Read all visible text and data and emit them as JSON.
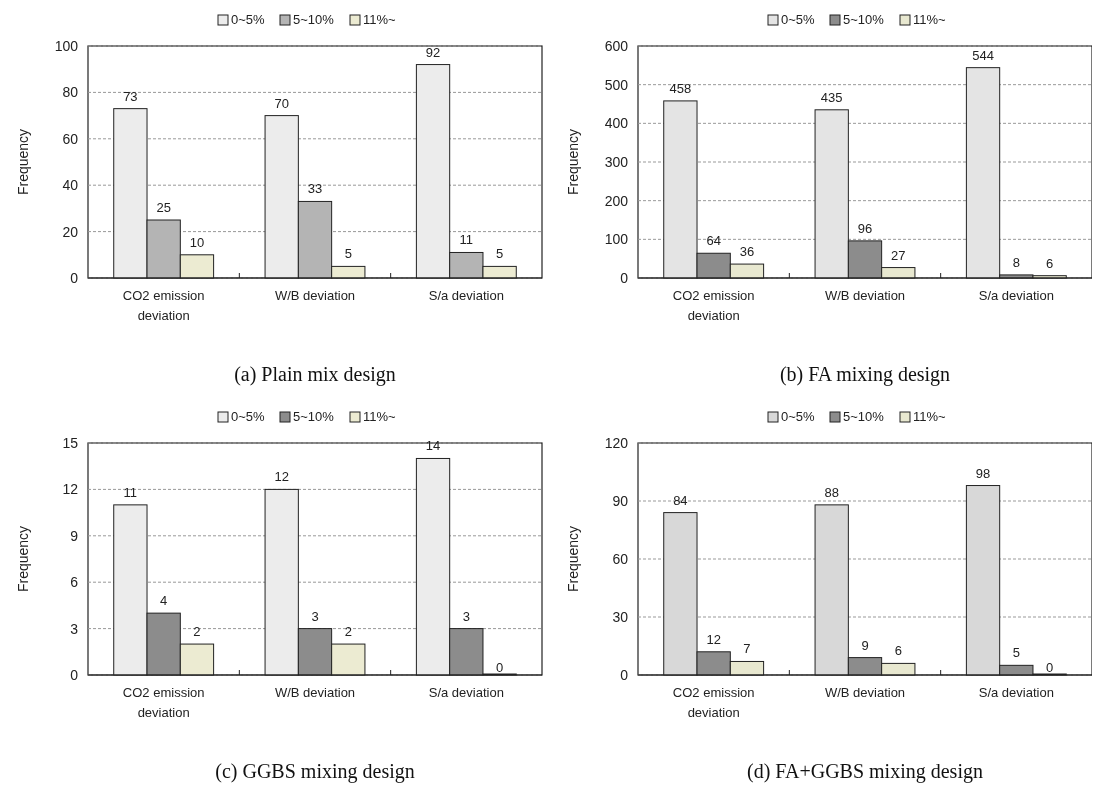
{
  "chart_data": [
    {
      "type": "bar",
      "title": "(a) Plain mix design",
      "ylabel": "Frequency",
      "categories": [
        "CO2 emission deviation",
        "W/B deviation",
        "S/a deviation"
      ],
      "series": [
        {
          "name": "0~5%",
          "color": "#ececec",
          "values": [
            73,
            70,
            92
          ]
        },
        {
          "name": "5~10%",
          "color": "#b4b4b4",
          "values": [
            25,
            33,
            11
          ]
        },
        {
          "name": "11%~",
          "color": "#ecebd2",
          "values": [
            10,
            5,
            5
          ]
        }
      ],
      "ylim": [
        0,
        100
      ],
      "yticks": [
        0,
        20,
        40,
        60,
        80,
        100
      ],
      "grid": "y",
      "legend": "top",
      "data_labels": true
    },
    {
      "type": "bar",
      "title": "(b) FA mixing design",
      "ylabel": "Frequency",
      "categories": [
        "CO2 emission deviation",
        "W/B deviation",
        "S/a deviation"
      ],
      "series": [
        {
          "name": "0~5%",
          "color": "#e4e4e4",
          "values": [
            458,
            435,
            544
          ]
        },
        {
          "name": "5~10%",
          "color": "#8c8c8c",
          "values": [
            64,
            96,
            8
          ]
        },
        {
          "name": "11%~",
          "color": "#e8e8d0",
          "values": [
            36,
            27,
            6
          ]
        }
      ],
      "ylim": [
        0,
        600
      ],
      "yticks": [
        0,
        100,
        200,
        300,
        400,
        500,
        600
      ],
      "grid": "y",
      "legend": "top",
      "data_labels": true
    },
    {
      "type": "bar",
      "title": "(c) GGBS mixing design",
      "ylabel": "Frequency",
      "categories": [
        "CO2 emission deviation",
        "W/B deviation",
        "S/a deviation"
      ],
      "series": [
        {
          "name": "0~5%",
          "color": "#ececec",
          "values": [
            11,
            12,
            14
          ]
        },
        {
          "name": "5~10%",
          "color": "#8c8c8c",
          "values": [
            4,
            3,
            3
          ]
        },
        {
          "name": "11%~",
          "color": "#ecebd2",
          "values": [
            2,
            2,
            0
          ]
        }
      ],
      "ylim": [
        0,
        15
      ],
      "yticks": [
        0,
        3,
        6,
        9,
        12,
        15
      ],
      "grid": "y",
      "legend": "top",
      "data_labels": true
    },
    {
      "type": "bar",
      "title": "(d) FA+GGBS mixing design",
      "ylabel": "Frequency",
      "categories": [
        "CO2 emission deviation",
        "W/B deviation",
        "S/a deviation"
      ],
      "series": [
        {
          "name": "0~5%",
          "color": "#d8d8d8",
          "values": [
            84,
            88,
            98
          ]
        },
        {
          "name": "5~10%",
          "color": "#8c8c8c",
          "values": [
            12,
            9,
            5
          ]
        },
        {
          "name": "11%~",
          "color": "#e8e8d0",
          "values": [
            7,
            6,
            0
          ]
        }
      ],
      "ylim": [
        0,
        120
      ],
      "yticks": [
        0,
        30,
        60,
        90,
        120
      ],
      "grid": "y",
      "legend": "top",
      "data_labels": true
    }
  ]
}
